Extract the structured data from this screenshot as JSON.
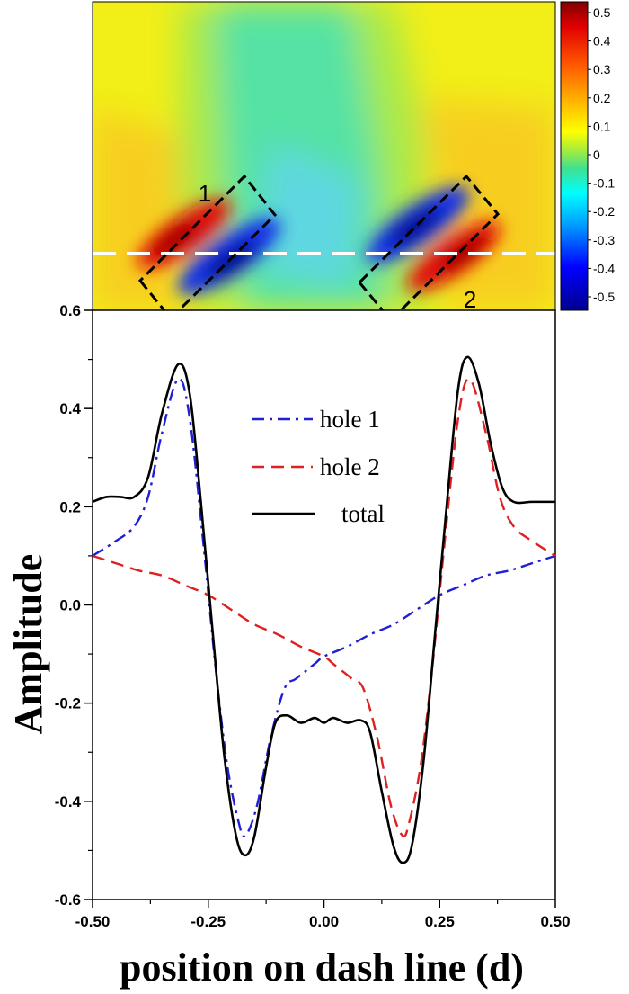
{
  "colormap": {
    "colorbar_ticks": [
      "0.5",
      "0.4",
      "0.3",
      "0.2",
      "0.1",
      "0",
      "-0.1",
      "-0.2",
      "-0.3",
      "-0.4",
      "-0.5"
    ],
    "labels": [
      {
        "name": "hole-1-label",
        "text": "1"
      },
      {
        "name": "hole-2-label",
        "text": "2"
      }
    ],
    "colors": [
      "#00008f",
      "#0000ff",
      "#00a0ff",
      "#00ffff",
      "#3fe090",
      "#a8ec3c",
      "#ffff00",
      "#ffb300",
      "#ff5500",
      "#e00000",
      "#800000"
    ]
  },
  "chart_data": {
    "type": "line",
    "xlabel": "position on dash line (d)",
    "ylabel": "Amplitude",
    "xlim": [
      -0.5,
      0.5
    ],
    "ylim": [
      -0.6,
      0.6
    ],
    "xticks": [
      -0.5,
      -0.25,
      0.0,
      0.25,
      0.5
    ],
    "xtick_labels": [
      "-0.50",
      "-0.25",
      "0.00",
      "0.25",
      "0.50"
    ],
    "yticks": [
      0.6,
      0.4,
      0.2,
      0.0,
      -0.2,
      -0.4,
      -0.6
    ],
    "ytick_labels": [
      "0.6",
      "0.4",
      "0.2",
      "0.0",
      "-0.2",
      "-0.4",
      "-0.6"
    ],
    "legend_position": "top-center",
    "series": [
      {
        "name": "hole 1",
        "color": "#1f1fd6",
        "dash": "dashdot",
        "points": [
          [
            -0.5,
            0.1
          ],
          [
            -0.45,
            0.13
          ],
          [
            -0.41,
            0.16
          ],
          [
            -0.38,
            0.22
          ],
          [
            -0.35,
            0.35
          ],
          [
            -0.315,
            0.46
          ],
          [
            -0.29,
            0.38
          ],
          [
            -0.26,
            0.12
          ],
          [
            -0.235,
            -0.12
          ],
          [
            -0.21,
            -0.32
          ],
          [
            -0.185,
            -0.44
          ],
          [
            -0.17,
            -0.47
          ],
          [
            -0.145,
            -0.41
          ],
          [
            -0.115,
            -0.27
          ],
          [
            -0.085,
            -0.17
          ],
          [
            -0.06,
            -0.15
          ],
          [
            -0.02,
            -0.12
          ],
          [
            0.0,
            -0.105
          ],
          [
            0.05,
            -0.085
          ],
          [
            0.1,
            -0.06
          ],
          [
            0.15,
            -0.04
          ],
          [
            0.2,
            -0.01
          ],
          [
            0.25,
            0.02
          ],
          [
            0.3,
            0.04
          ],
          [
            0.35,
            0.06
          ],
          [
            0.4,
            0.07
          ],
          [
            0.45,
            0.085
          ],
          [
            0.5,
            0.1
          ]
        ]
      },
      {
        "name": "hole 2",
        "color": "#e02020",
        "dash": "dashed",
        "points": [
          [
            -0.5,
            0.1
          ],
          [
            -0.45,
            0.085
          ],
          [
            -0.4,
            0.07
          ],
          [
            -0.35,
            0.06
          ],
          [
            -0.3,
            0.04
          ],
          [
            -0.25,
            0.02
          ],
          [
            -0.2,
            -0.01
          ],
          [
            -0.15,
            -0.04
          ],
          [
            -0.1,
            -0.06
          ],
          [
            -0.05,
            -0.085
          ],
          [
            0.0,
            -0.105
          ],
          [
            0.02,
            -0.12
          ],
          [
            0.06,
            -0.15
          ],
          [
            0.085,
            -0.17
          ],
          [
            0.115,
            -0.27
          ],
          [
            0.145,
            -0.41
          ],
          [
            0.17,
            -0.47
          ],
          [
            0.185,
            -0.44
          ],
          [
            0.21,
            -0.32
          ],
          [
            0.235,
            -0.12
          ],
          [
            0.26,
            0.12
          ],
          [
            0.29,
            0.38
          ],
          [
            0.315,
            0.46
          ],
          [
            0.35,
            0.35
          ],
          [
            0.38,
            0.22
          ],
          [
            0.41,
            0.16
          ],
          [
            0.45,
            0.13
          ],
          [
            0.5,
            0.1
          ]
        ]
      },
      {
        "name": "total",
        "color": "#000000",
        "dash": "solid",
        "points": [
          [
            -0.5,
            0.21
          ],
          [
            -0.47,
            0.22
          ],
          [
            -0.44,
            0.22
          ],
          [
            -0.41,
            0.22
          ],
          [
            -0.38,
            0.26
          ],
          [
            -0.35,
            0.39
          ],
          [
            -0.315,
            0.49
          ],
          [
            -0.29,
            0.43
          ],
          [
            -0.265,
            0.2
          ],
          [
            -0.24,
            -0.06
          ],
          [
            -0.215,
            -0.31
          ],
          [
            -0.19,
            -0.47
          ],
          [
            -0.17,
            -0.51
          ],
          [
            -0.15,
            -0.47
          ],
          [
            -0.125,
            -0.33
          ],
          [
            -0.105,
            -0.24
          ],
          [
            -0.08,
            -0.225
          ],
          [
            -0.05,
            -0.24
          ],
          [
            -0.02,
            -0.23
          ],
          [
            0.0,
            -0.24
          ],
          [
            0.02,
            -0.23
          ],
          [
            0.05,
            -0.24
          ],
          [
            0.08,
            -0.235
          ],
          [
            0.1,
            -0.26
          ],
          [
            0.125,
            -0.38
          ],
          [
            0.15,
            -0.49
          ],
          [
            0.17,
            -0.525
          ],
          [
            0.19,
            -0.49
          ],
          [
            0.215,
            -0.32
          ],
          [
            0.24,
            -0.06
          ],
          [
            0.265,
            0.2
          ],
          [
            0.29,
            0.44
          ],
          [
            0.31,
            0.505
          ],
          [
            0.335,
            0.45
          ],
          [
            0.36,
            0.33
          ],
          [
            0.385,
            0.24
          ],
          [
            0.41,
            0.21
          ],
          [
            0.45,
            0.21
          ],
          [
            0.5,
            0.21
          ]
        ]
      }
    ]
  }
}
